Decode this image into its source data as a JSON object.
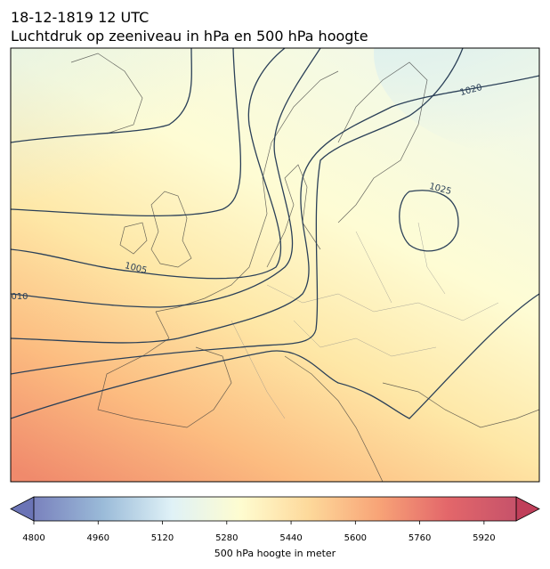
{
  "map": {
    "title": "18-12-1819 12 UTC",
    "subtitle": "Luchtdruk op zeeniveau in hPa en 500 hPa hoogte",
    "contour_labels": [
      "1020",
      "1025",
      "1005",
      "010"
    ],
    "colorbar": {
      "label": "500 hPa hoogte in meter",
      "lim": [
        4800,
        6000
      ],
      "ticks": [
        4800,
        4960,
        5120,
        5280,
        5440,
        5600,
        5760,
        5920
      ],
      "colors": [
        "#6b74b6",
        "#8fb3d4",
        "#dcf0f6",
        "#fefccb",
        "#fdd48f",
        "#f79a68",
        "#e0565a",
        "#c03f5a"
      ]
    }
  }
}
